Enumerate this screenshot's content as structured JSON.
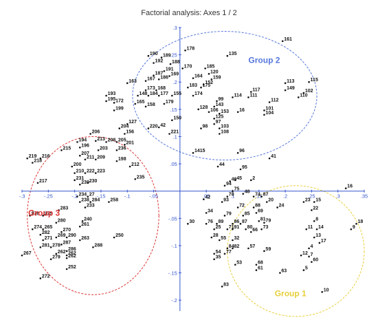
{
  "chart_data": {
    "type": "scatter",
    "title": "Factorial analysis: Axes 1 / 2",
    "xlabel": "",
    "ylabel": "",
    "xlim": [
      -0.3,
      0.35
    ],
    "ylim": [
      -0.22,
      0.3
    ],
    "grid": false,
    "x_ticks": [
      {
        "v": -0.3,
        "label": "-.3"
      },
      {
        "v": -0.25,
        "label": "-.25"
      },
      {
        "v": -0.2,
        "label": "-.2"
      },
      {
        "v": -0.15,
        "label": "-.15"
      },
      {
        "v": -0.1,
        "label": "-.1"
      },
      {
        "v": -0.05,
        "label": "-.05"
      },
      {
        "v": 0.05,
        "label": ".05"
      },
      {
        "v": 0.1,
        "label": ".1"
      },
      {
        "v": 0.15,
        "label": ".15"
      },
      {
        "v": 0.2,
        "label": ".2"
      },
      {
        "v": 0.25,
        "label": ".25"
      },
      {
        "v": 0.3,
        "label": ".3"
      },
      {
        "v": 0.35,
        "label": ".35"
      }
    ],
    "y_ticks": [
      {
        "v": 0.3,
        "label": ".3"
      },
      {
        "v": 0.25,
        "label": ".25"
      },
      {
        "v": 0.2,
        "label": ".2"
      },
      {
        "v": 0.15,
        "label": ".15"
      },
      {
        "v": 0.1,
        "label": ".1"
      },
      {
        "v": 0.05,
        "label": ".05"
      },
      {
        "v": -0.05,
        "label": "-.05"
      },
      {
        "v": -0.1,
        "label": "-.1"
      },
      {
        "v": -0.15,
        "label": "-.15"
      },
      {
        "v": -0.2,
        "label": "-.2"
      }
    ],
    "groups": [
      {
        "name": "Group 2",
        "color": "#5577dd",
        "cx": 0.085,
        "cy": 0.175,
        "rx": 0.175,
        "ry": 0.118,
        "label_x": 0.16,
        "label_y": 0.235
      },
      {
        "name": "Group 3",
        "color": "#dd3333",
        "cx": -0.165,
        "cy": -0.045,
        "rx": 0.125,
        "ry": 0.145,
        "label_x": -0.258,
        "label_y": -0.045
      },
      {
        "name": "Group 1",
        "color": "#e8cf3a",
        "cx": 0.22,
        "cy": -0.11,
        "rx": 0.13,
        "ry": 0.12,
        "label_x": 0.21,
        "label_y": -0.193
      }
    ],
    "points": [
      {
        "label": "161",
        "x": 0.195,
        "y": 0.275
      },
      {
        "label": "178",
        "x": 0.01,
        "y": 0.258
      },
      {
        "label": "135",
        "x": 0.09,
        "y": 0.248
      },
      {
        "label": "190",
        "x": -0.06,
        "y": 0.248
      },
      {
        "label": "189",
        "x": -0.035,
        "y": 0.245
      },
      {
        "label": "192",
        "x": -0.05,
        "y": 0.235
      },
      {
        "label": "188",
        "x": -0.018,
        "y": 0.233
      },
      {
        "label": "170",
        "x": 0.005,
        "y": 0.225
      },
      {
        "label": "185",
        "x": 0.048,
        "y": 0.225
      },
      {
        "label": "191",
        "x": -0.03,
        "y": 0.22
      },
      {
        "label": "120",
        "x": 0.055,
        "y": 0.215
      },
      {
        "label": "187",
        "x": -0.05,
        "y": 0.212
      },
      {
        "label": "169",
        "x": -0.02,
        "y": 0.211
      },
      {
        "label": "186",
        "x": -0.04,
        "y": 0.205
      },
      {
        "label": "164",
        "x": 0.025,
        "y": 0.207
      },
      {
        "label": "159",
        "x": 0.06,
        "y": 0.205
      },
      {
        "label": "167",
        "x": -0.065,
        "y": 0.202
      },
      {
        "label": "163",
        "x": -0.1,
        "y": 0.198
      },
      {
        "label": "152",
        "x": 0.045,
        "y": 0.195
      },
      {
        "label": "183",
        "x": 0.015,
        "y": 0.19
      },
      {
        "label": "175",
        "x": 0.04,
        "y": 0.19
      },
      {
        "label": "113",
        "x": 0.2,
        "y": 0.198
      },
      {
        "label": "115",
        "x": 0.245,
        "y": 0.2
      },
      {
        "label": "173",
        "x": -0.065,
        "y": 0.185
      },
      {
        "label": "168",
        "x": -0.045,
        "y": 0.185
      },
      {
        "label": "117",
        "x": 0.135,
        "y": 0.182
      },
      {
        "label": "149",
        "x": 0.2,
        "y": 0.185
      },
      {
        "label": "102",
        "x": 0.235,
        "y": 0.18
      },
      {
        "label": "193",
        "x": -0.14,
        "y": 0.175
      },
      {
        "label": "148",
        "x": -0.08,
        "y": 0.175
      },
      {
        "label": "184",
        "x": -0.06,
        "y": 0.175
      },
      {
        "label": "177",
        "x": -0.04,
        "y": 0.175
      },
      {
        "label": "155",
        "x": -0.015,
        "y": 0.175
      },
      {
        "label": "174",
        "x": 0.025,
        "y": 0.175
      },
      {
        "label": "114",
        "x": 0.1,
        "y": 0.172
      },
      {
        "label": "111",
        "x": 0.13,
        "y": 0.172
      },
      {
        "label": "110",
        "x": 0.225,
        "y": 0.172
      },
      {
        "label": "195",
        "x": -0.14,
        "y": 0.165
      },
      {
        "label": "172",
        "x": -0.125,
        "y": 0.162
      },
      {
        "label": "99",
        "x": 0.07,
        "y": 0.165
      },
      {
        "label": "112",
        "x": 0.17,
        "y": 0.163
      },
      {
        "label": "165",
        "x": -0.085,
        "y": 0.16
      },
      {
        "label": "179",
        "x": -0.03,
        "y": 0.16
      },
      {
        "label": "158",
        "x": -0.065,
        "y": 0.155
      },
      {
        "label": "143",
        "x": 0.065,
        "y": 0.155
      },
      {
        "label": "199",
        "x": -0.125,
        "y": 0.148
      },
      {
        "label": "128",
        "x": 0.035,
        "y": 0.15
      },
      {
        "label": "101",
        "x": 0.16,
        "y": 0.148
      },
      {
        "label": "106",
        "x": 0.055,
        "y": 0.145
      },
      {
        "label": "16",
        "x": 0.11,
        "y": 0.145
      },
      {
        "label": "153",
        "x": 0.075,
        "y": 0.142
      },
      {
        "label": "104",
        "x": 0.16,
        "y": 0.14
      },
      {
        "label": "125",
        "x": 0.065,
        "y": 0.133
      },
      {
        "label": "150",
        "x": -0.015,
        "y": 0.13
      },
      {
        "label": "127",
        "x": -0.1,
        "y": 0.123
      },
      {
        "label": "42",
        "x": -0.04,
        "y": 0.117
      },
      {
        "label": "97",
        "x": 0.065,
        "y": 0.123
      },
      {
        "label": "204",
        "x": -0.115,
        "y": 0.115
      },
      {
        "label": "220",
        "x": -0.06,
        "y": 0.115
      },
      {
        "label": "98",
        "x": 0.04,
        "y": 0.115
      },
      {
        "label": "103",
        "x": 0.075,
        "y": 0.115
      },
      {
        "label": "156",
        "x": -0.105,
        "y": 0.105
      },
      {
        "label": "221",
        "x": -0.02,
        "y": 0.105
      },
      {
        "label": "108",
        "x": 0.075,
        "y": 0.105
      },
      {
        "label": "206",
        "x": -0.17,
        "y": 0.105
      },
      {
        "label": "213",
        "x": -0.16,
        "y": 0.092
      },
      {
        "label": "194",
        "x": -0.195,
        "y": 0.09
      },
      {
        "label": "208",
        "x": -0.14,
        "y": 0.09
      },
      {
        "label": "205",
        "x": -0.12,
        "y": 0.09
      },
      {
        "label": "201",
        "x": -0.105,
        "y": 0.085
      },
      {
        "label": "196",
        "x": -0.19,
        "y": 0.08
      },
      {
        "label": "203",
        "x": -0.155,
        "y": 0.075
      },
      {
        "label": "236",
        "x": -0.12,
        "y": 0.075
      },
      {
        "label": "1415",
        "x": 0.025,
        "y": 0.07
      },
      {
        "label": "215",
        "x": -0.225,
        "y": 0.075
      },
      {
        "label": "207",
        "x": -0.19,
        "y": 0.065
      },
      {
        "label": "219",
        "x": -0.29,
        "y": 0.06
      },
      {
        "label": "216",
        "x": -0.265,
        "y": 0.06
      },
      {
        "label": "218",
        "x": -0.28,
        "y": 0.052
      },
      {
        "label": "211",
        "x": -0.18,
        "y": 0.058
      },
      {
        "label": "209",
        "x": -0.16,
        "y": 0.058
      },
      {
        "label": "198",
        "x": -0.12,
        "y": 0.055
      },
      {
        "label": "200",
        "x": -0.205,
        "y": 0.045
      },
      {
        "label": "212",
        "x": -0.095,
        "y": 0.045
      },
      {
        "label": "210",
        "x": -0.2,
        "y": 0.033
      },
      {
        "label": "222",
        "x": -0.18,
        "y": 0.033
      },
      {
        "label": "223",
        "x": -0.16,
        "y": 0.033
      },
      {
        "label": "217",
        "x": -0.27,
        "y": 0.015
      },
      {
        "label": "231",
        "x": -0.2,
        "y": 0.02
      },
      {
        "label": "239",
        "x": -0.19,
        "y": 0.012
      },
      {
        "label": "230",
        "x": -0.175,
        "y": 0.015
      },
      {
        "label": "235",
        "x": -0.085,
        "y": 0.022
      },
      {
        "label": "234",
        "x": -0.195,
        "y": -0.01
      },
      {
        "label": "27",
        "x": -0.175,
        "y": -0.01
      },
      {
        "label": "258",
        "x": -0.135,
        "y": -0.02
      },
      {
        "label": "238",
        "x": -0.19,
        "y": -0.02
      },
      {
        "label": "284",
        "x": -0.17,
        "y": -0.02
      },
      {
        "label": "233",
        "x": -0.18,
        "y": -0.03
      },
      {
        "label": "283",
        "x": -0.23,
        "y": -0.035
      },
      {
        "label": "276",
        "x": -0.285,
        "y": -0.045
      },
      {
        "label": "275",
        "x": -0.26,
        "y": -0.045
      },
      {
        "label": "280",
        "x": -0.235,
        "y": -0.058
      },
      {
        "label": "240",
        "x": -0.185,
        "y": -0.055
      },
      {
        "label": "274",
        "x": -0.28,
        "y": -0.07
      },
      {
        "label": "265",
        "x": -0.26,
        "y": -0.07
      },
      {
        "label": "270",
        "x": -0.225,
        "y": -0.075
      },
      {
        "label": "261",
        "x": -0.19,
        "y": -0.065
      },
      {
        "label": "282",
        "x": -0.265,
        "y": -0.08
      },
      {
        "label": "269",
        "x": -0.235,
        "y": -0.085
      },
      {
        "label": "290",
        "x": -0.215,
        "y": -0.085
      },
      {
        "label": "263",
        "x": -0.19,
        "y": -0.09
      },
      {
        "label": "271",
        "x": -0.26,
        "y": -0.09
      },
      {
        "label": "250",
        "x": -0.125,
        "y": -0.085
      },
      {
        "label": "281",
        "x": -0.265,
        "y": -0.103
      },
      {
        "label": "278",
        "x": -0.245,
        "y": -0.103
      },
      {
        "label": "287",
        "x": -0.225,
        "y": -0.098
      },
      {
        "label": "288",
        "x": -0.165,
        "y": -0.103
      },
      {
        "label": "286",
        "x": -0.215,
        "y": -0.11
      },
      {
        "label": "267",
        "x": -0.3,
        "y": -0.118
      },
      {
        "label": "262",
        "x": -0.215,
        "y": -0.118
      },
      {
        "label": "262",
        "x": -0.235,
        "y": -0.115
      },
      {
        "label": "279",
        "x": -0.245,
        "y": -0.125
      },
      {
        "label": "262",
        "x": -0.215,
        "y": -0.123
      },
      {
        "label": "252",
        "x": -0.215,
        "y": -0.143
      },
      {
        "label": "272",
        "x": -0.265,
        "y": -0.16
      },
      {
        "label": "96",
        "x": 0.11,
        "y": 0.07
      },
      {
        "label": "41",
        "x": 0.17,
        "y": 0.06
      },
      {
        "label": "44",
        "x": 0.072,
        "y": 0.045
      },
      {
        "label": "95",
        "x": 0.115,
        "y": 0.04
      },
      {
        "label": "45",
        "x": 0.105,
        "y": 0.02
      },
      {
        "label": "46",
        "x": 0.095,
        "y": 0.018
      },
      {
        "label": "2",
        "x": 0.135,
        "y": 0.02
      },
      {
        "label": "94",
        "x": 0.085,
        "y": 0.01
      },
      {
        "label": "16",
        "x": 0.315,
        "y": 0.005
      },
      {
        "label": "75",
        "x": 0.1,
        "y": 0.0
      },
      {
        "label": "78",
        "x": 0.09,
        "y": -0.01
      },
      {
        "label": "48",
        "x": 0.12,
        "y": -0.005
      },
      {
        "label": "74",
        "x": 0.14,
        "y": -0.01
      },
      {
        "label": "87",
        "x": 0.155,
        "y": -0.01
      },
      {
        "label": "42",
        "x": 0.045,
        "y": -0.015
      },
      {
        "label": "93",
        "x": 0.08,
        "y": -0.02
      },
      {
        "label": "20",
        "x": 0.165,
        "y": -0.02
      },
      {
        "label": "23",
        "x": 0.235,
        "y": -0.02
      },
      {
        "label": "15",
        "x": 0.255,
        "y": -0.02
      },
      {
        "label": "72",
        "x": 0.11,
        "y": -0.03
      },
      {
        "label": "88",
        "x": 0.14,
        "y": -0.03
      },
      {
        "label": "24",
        "x": 0.185,
        "y": -0.03
      },
      {
        "label": "22",
        "x": 0.25,
        "y": -0.035
      },
      {
        "label": "34",
        "x": 0.05,
        "y": -0.04
      },
      {
        "label": "79",
        "x": 0.085,
        "y": -0.045
      },
      {
        "label": "85",
        "x": 0.12,
        "y": -0.045
      },
      {
        "label": "69",
        "x": 0.145,
        "y": -0.04
      },
      {
        "label": "30",
        "x": 0.015,
        "y": -0.06
      },
      {
        "label": "76",
        "x": 0.05,
        "y": -0.06
      },
      {
        "label": "89",
        "x": 0.07,
        "y": -0.06
      },
      {
        "label": "86",
        "x": 0.1,
        "y": -0.06
      },
      {
        "label": "87",
        "x": 0.115,
        "y": -0.06
      },
      {
        "label": "81",
        "x": 0.15,
        "y": -0.055
      },
      {
        "label": "79",
        "x": 0.16,
        "y": -0.058
      },
      {
        "label": "8",
        "x": 0.255,
        "y": -0.055
      },
      {
        "label": "18",
        "x": 0.335,
        "y": -0.06
      },
      {
        "label": "25",
        "x": 0.065,
        "y": -0.07
      },
      {
        "label": "71",
        "x": 0.09,
        "y": -0.07
      },
      {
        "label": "91",
        "x": 0.1,
        "y": -0.07
      },
      {
        "label": "80",
        "x": 0.125,
        "y": -0.07
      },
      {
        "label": "73",
        "x": 0.155,
        "y": -0.07
      },
      {
        "label": "11",
        "x": 0.24,
        "y": -0.07
      },
      {
        "label": "14",
        "x": 0.26,
        "y": -0.07
      },
      {
        "label": "9",
        "x": 0.325,
        "y": -0.07
      },
      {
        "label": "66",
        "x": 0.135,
        "y": -0.075
      },
      {
        "label": "28",
        "x": 0.06,
        "y": -0.085
      },
      {
        "label": "55",
        "x": 0.075,
        "y": -0.09
      },
      {
        "label": "32",
        "x": 0.1,
        "y": -0.09
      },
      {
        "label": "13",
        "x": 0.255,
        "y": -0.085
      },
      {
        "label": "17",
        "x": 0.265,
        "y": -0.095
      },
      {
        "label": "57",
        "x": 0.13,
        "y": -0.105
      },
      {
        "label": "84",
        "x": 0.09,
        "y": -0.105
      },
      {
        "label": "82",
        "x": 0.1,
        "y": -0.105
      },
      {
        "label": "4",
        "x": 0.245,
        "y": -0.105
      },
      {
        "label": "54",
        "x": 0.065,
        "y": -0.115
      },
      {
        "label": "77",
        "x": 0.085,
        "y": -0.115
      },
      {
        "label": "59",
        "x": 0.16,
        "y": -0.11
      },
      {
        "label": "12",
        "x": 0.23,
        "y": -0.118
      },
      {
        "label": "7",
        "x": 0.245,
        "y": -0.12
      },
      {
        "label": "35",
        "x": 0.065,
        "y": -0.125
      },
      {
        "label": "60",
        "x": 0.25,
        "y": -0.13
      },
      {
        "label": "53",
        "x": 0.105,
        "y": -0.135
      },
      {
        "label": "68",
        "x": 0.145,
        "y": -0.135
      },
      {
        "label": "61",
        "x": 0.145,
        "y": -0.145
      },
      {
        "label": "63",
        "x": 0.19,
        "y": -0.15
      },
      {
        "label": "5",
        "x": 0.235,
        "y": -0.145
      },
      {
        "label": "83",
        "x": 0.08,
        "y": -0.175
      },
      {
        "label": "10",
        "x": 0.27,
        "y": -0.185
      }
    ]
  }
}
